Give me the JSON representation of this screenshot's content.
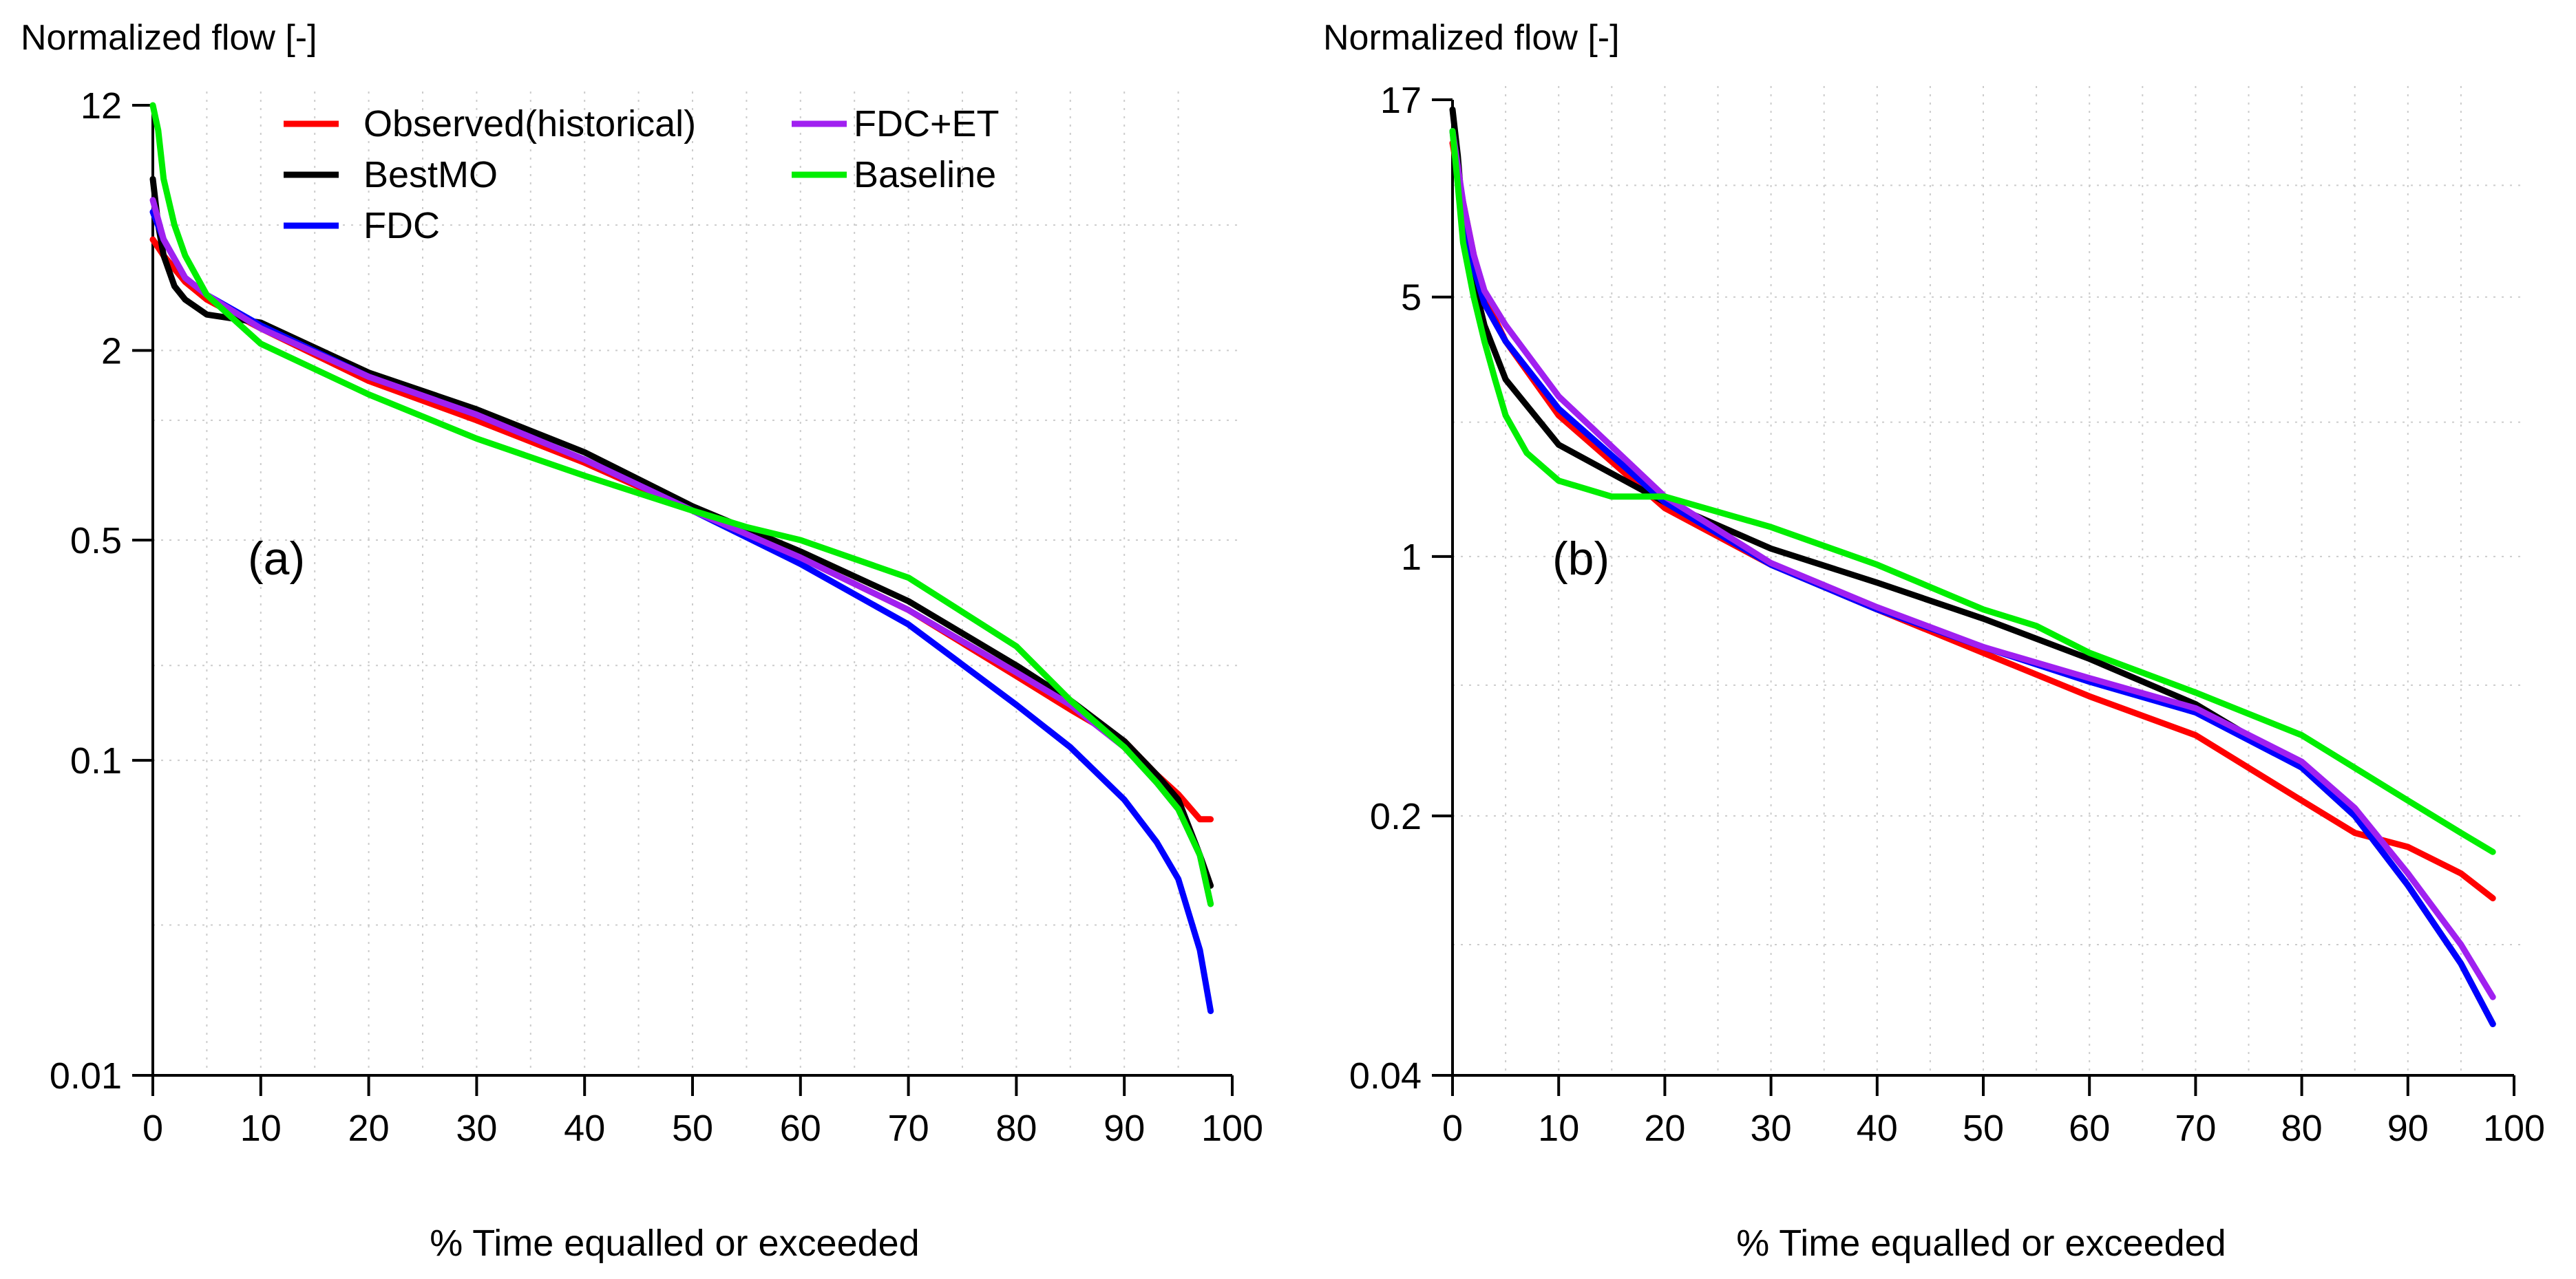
{
  "chart_data": [
    {
      "type": "line",
      "panel_label": "(a)",
      "ylabel": "Normalized flow [-]",
      "xlabel": "% Time equalled or exceeded",
      "y_scale": "log",
      "xlim": [
        0,
        100
      ],
      "ylim": [
        0.01,
        12
      ],
      "xticks": [
        0,
        10,
        20,
        30,
        40,
        50,
        60,
        70,
        80,
        90,
        100
      ],
      "yticks": [
        12,
        2,
        0.5,
        0.1,
        0.01
      ],
      "grid": true,
      "legend": {
        "position": "top",
        "entries": [
          {
            "label": "Observed(historical)",
            "color": "#ff0000"
          },
          {
            "label": "FDC+ET",
            "color": "#a020f0"
          },
          {
            "label": "BestMO",
            "color": "#000000"
          },
          {
            "label": "Baseline",
            "color": "#00ee00"
          },
          {
            "label": "FDC",
            "color": "#0000ff"
          }
        ]
      },
      "series": [
        {
          "name": "Observed(historical)",
          "color": "#ff0000",
          "x": [
            0,
            1,
            3,
            5,
            10,
            20,
            30,
            40,
            50,
            60,
            70,
            80,
            85,
            90,
            93,
            95,
            97,
            98
          ],
          "y": [
            4.5,
            4.0,
            3.3,
            2.9,
            2.35,
            1.6,
            1.2,
            0.88,
            0.62,
            0.44,
            0.3,
            0.185,
            0.145,
            0.115,
            0.09,
            0.078,
            0.065,
            0.065
          ]
        },
        {
          "name": "BestMO",
          "color": "#000000",
          "x": [
            0,
            0.5,
            1,
            2,
            3,
            5,
            10,
            20,
            30,
            40,
            50,
            60,
            70,
            80,
            85,
            90,
            93,
            95,
            97,
            98
          ],
          "y": [
            7.0,
            5.0,
            4.0,
            3.2,
            2.9,
            2.6,
            2.45,
            1.7,
            1.3,
            0.95,
            0.64,
            0.46,
            0.32,
            0.2,
            0.155,
            0.115,
            0.09,
            0.075,
            0.05,
            0.04
          ]
        },
        {
          "name": "FDC",
          "color": "#0000ff",
          "x": [
            0,
            1,
            3,
            5,
            10,
            20,
            30,
            40,
            50,
            60,
            70,
            80,
            85,
            90,
            93,
            95,
            97,
            98
          ],
          "y": [
            5.5,
            4.5,
            3.4,
            3.0,
            2.4,
            1.65,
            1.25,
            0.9,
            0.62,
            0.42,
            0.27,
            0.15,
            0.11,
            0.075,
            0.055,
            0.042,
            0.025,
            0.016
          ]
        },
        {
          "name": "FDC+ET",
          "color": "#a020f0",
          "x": [
            0,
            1,
            3,
            5,
            10,
            20,
            30,
            40,
            50,
            60,
            70,
            80,
            85,
            90,
            93,
            95,
            97,
            98
          ],
          "y": [
            6.0,
            4.5,
            3.4,
            3.0,
            2.35,
            1.65,
            1.25,
            0.9,
            0.62,
            0.44,
            0.3,
            0.19,
            0.15,
            0.11,
            0.085,
            0.07,
            0.05,
            0.035
          ]
        },
        {
          "name": "Baseline",
          "color": "#00ee00",
          "x": [
            0,
            0.5,
            1,
            2,
            3,
            5,
            10,
            20,
            30,
            40,
            50,
            55,
            60,
            70,
            80,
            85,
            90,
            93,
            95,
            97,
            98
          ],
          "y": [
            12.0,
            10.0,
            7.0,
            5.0,
            4.0,
            3.0,
            2.1,
            1.45,
            1.05,
            0.8,
            0.62,
            0.55,
            0.5,
            0.38,
            0.23,
            0.155,
            0.11,
            0.085,
            0.07,
            0.05,
            0.035
          ]
        }
      ]
    },
    {
      "type": "line",
      "panel_label": "(b)",
      "ylabel": "Normalized flow [-]",
      "xlabel": "% Time equalled or exceeded",
      "y_scale": "log",
      "xlim": [
        0,
        100
      ],
      "ylim": [
        0.04,
        17
      ],
      "xticks": [
        0,
        10,
        20,
        30,
        40,
        50,
        60,
        70,
        80,
        90,
        100
      ],
      "yticks": [
        17,
        5,
        1,
        0.2,
        0.04
      ],
      "grid": true,
      "series": [
        {
          "name": "Observed(historical)",
          "color": "#ff0000",
          "x": [
            0,
            1,
            2,
            3,
            5,
            10,
            15,
            20,
            30,
            40,
            50,
            60,
            70,
            80,
            85,
            90,
            95,
            98
          ],
          "y": [
            13.0,
            9.0,
            6.5,
            5.0,
            3.8,
            2.4,
            1.8,
            1.35,
            0.95,
            0.72,
            0.55,
            0.42,
            0.33,
            0.22,
            0.18,
            0.165,
            0.14,
            0.12
          ]
        },
        {
          "name": "BestMO",
          "color": "#000000",
          "x": [
            0,
            0.5,
            1,
            2,
            3,
            5,
            10,
            20,
            30,
            40,
            50,
            60,
            70,
            80,
            85,
            90,
            95,
            98
          ],
          "y": [
            16.0,
            12.0,
            8.0,
            5.5,
            4.2,
            3.0,
            2.0,
            1.4,
            1.05,
            0.85,
            0.68,
            0.53,
            0.4,
            0.27,
            0.2,
            0.13,
            0.08,
            0.055
          ]
        },
        {
          "name": "FDC",
          "color": "#0000ff",
          "x": [
            0,
            1,
            2,
            3,
            5,
            10,
            20,
            30,
            40,
            50,
            60,
            70,
            80,
            85,
            90,
            95,
            98
          ],
          "y": [
            14.0,
            8.5,
            6.0,
            4.8,
            3.8,
            2.5,
            1.4,
            0.95,
            0.72,
            0.57,
            0.46,
            0.38,
            0.27,
            0.2,
            0.13,
            0.08,
            0.055
          ]
        },
        {
          "name": "FDC+ET",
          "color": "#a020f0",
          "x": [
            0,
            1,
            2,
            3,
            5,
            10,
            20,
            30,
            40,
            50,
            60,
            70,
            80,
            85,
            90,
            95,
            98
          ],
          "y": [
            14.0,
            9.0,
            6.5,
            5.2,
            4.2,
            2.7,
            1.45,
            0.96,
            0.73,
            0.57,
            0.47,
            0.39,
            0.28,
            0.21,
            0.14,
            0.09,
            0.065
          ]
        },
        {
          "name": "Baseline",
          "color": "#00ee00",
          "x": [
            0,
            0.5,
            1,
            2,
            3,
            4,
            5,
            7,
            10,
            15,
            20,
            30,
            40,
            50,
            55,
            60,
            70,
            80,
            90,
            95,
            98
          ],
          "y": [
            14.0,
            10.0,
            7.0,
            5.0,
            3.8,
            3.0,
            2.4,
            1.9,
            1.6,
            1.45,
            1.45,
            1.2,
            0.95,
            0.72,
            0.65,
            0.55,
            0.43,
            0.33,
            0.22,
            0.18,
            0.16
          ]
        }
      ]
    }
  ]
}
